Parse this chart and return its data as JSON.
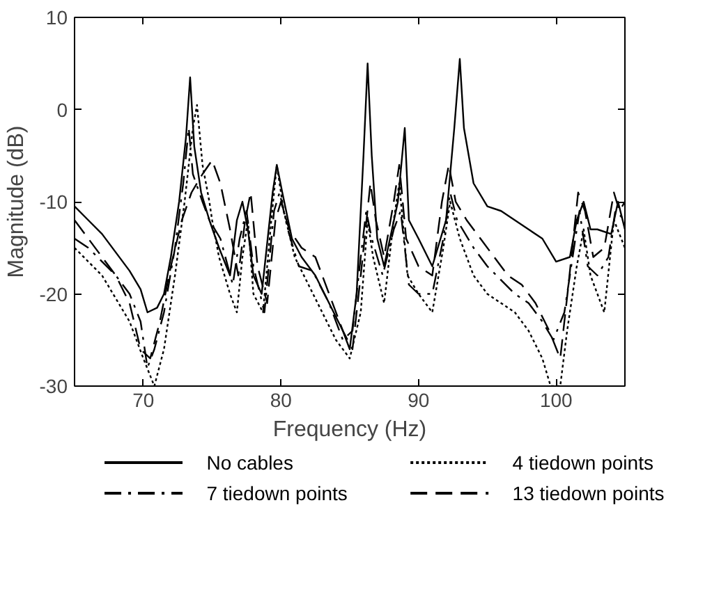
{
  "chart_data": {
    "type": "line",
    "xlabel": "Frequency (Hz)",
    "ylabel": "Magnitude (dB)",
    "xlim": [
      65,
      105
    ],
    "ylim": [
      -30,
      10
    ],
    "xticks": [
      70,
      80,
      90,
      100
    ],
    "yticks": [
      -30,
      -20,
      -10,
      0,
      10
    ],
    "grid": false,
    "legend": "bottom",
    "marker": "none",
    "series": [
      {
        "name": "No cables",
        "color": "#000000",
        "line_style": "solid",
        "x": [
          65,
          66,
          67,
          68,
          69,
          69.8,
          70.3,
          71,
          71.5,
          72,
          72.6,
          73.1,
          73.4,
          73.7,
          74.2,
          74.8,
          75.5,
          76.3,
          76.8,
          77.2,
          77.6,
          78,
          78.6,
          79.4,
          79.7,
          80.1,
          80.8,
          81.5,
          82.5,
          83.5,
          84.5,
          85,
          85.5,
          86,
          86.3,
          86.6,
          87,
          87.5,
          88.5,
          89,
          89.3,
          90,
          91,
          92,
          92.6,
          93,
          93.3,
          94,
          95,
          96,
          97,
          98,
          99,
          100,
          101,
          101.5,
          102,
          102.5,
          103,
          104,
          104.5,
          105
        ],
        "values": [
          -10.5,
          -12,
          -13.5,
          -15.5,
          -17.5,
          -19.5,
          -22,
          -21.5,
          -20,
          -16,
          -10,
          -3,
          3.5,
          -4,
          -9,
          -12,
          -15,
          -18,
          -12,
          -10,
          -13,
          -18,
          -20,
          -9,
          -6,
          -9,
          -14,
          -16,
          -18,
          -21,
          -24,
          -26,
          -20,
          -5,
          5,
          -5,
          -14,
          -17,
          -10,
          -2,
          -12,
          -14,
          -17,
          -12,
          -2,
          5.5,
          -2,
          -8,
          -10.5,
          -11,
          -12,
          -13,
          -14,
          -16.5,
          -16,
          -12,
          -10,
          -13,
          -13,
          -13.5,
          -10,
          -13
        ]
      },
      {
        "name": "4 tiedown points",
        "color": "#000000",
        "line_style": "dotted",
        "x": [
          65,
          66,
          67,
          68,
          69,
          70,
          70.8,
          71.5,
          72.3,
          73,
          73.6,
          73.9,
          74.3,
          74.8,
          75,
          75.5,
          76.3,
          76.8,
          77.2,
          77.6,
          78,
          78.7,
          79.3,
          79.7,
          80.2,
          81,
          82,
          83,
          84,
          85,
          85.8,
          86.3,
          86.7,
          87.5,
          88.2,
          88.6,
          89.2,
          90,
          91,
          91.8,
          92.3,
          93,
          94,
          95,
          96,
          97,
          98,
          99,
          99.6,
          100.3,
          100.8,
          101.5,
          102,
          102.5,
          103,
          103.5,
          104.2,
          105
        ],
        "values": [
          -15,
          -16.5,
          -18,
          -20.5,
          -23,
          -27,
          -30,
          -26,
          -18,
          -10,
          -2,
          0.5,
          -6,
          -10,
          -12,
          -16,
          -20,
          -22,
          -16,
          -12,
          -20,
          -22,
          -12,
          -6,
          -11,
          -16,
          -19,
          -22,
          -25,
          -27,
          -22,
          -12,
          -16,
          -21,
          -12,
          -8,
          -18,
          -20,
          -22,
          -15,
          -10,
          -14,
          -18,
          -20,
          -21,
          -22,
          -24,
          -27,
          -30,
          -30,
          -24,
          -17,
          -13,
          -18,
          -20,
          -22,
          -12,
          -15
        ]
      },
      {
        "name": "7 tiedown points",
        "color": "#000000",
        "line_style": "dashdot",
        "x": [
          65,
          66,
          67,
          68,
          69,
          69.8,
          70.3,
          70.8,
          71.5,
          72.3,
          72.9,
          73.3,
          73.6,
          74.3,
          74.8,
          75.6,
          76.5,
          77,
          77.5,
          78,
          78.8,
          79.5,
          79.9,
          80.5,
          81.3,
          82.3,
          83.5,
          84.5,
          85.2,
          85.8,
          86.2,
          86.6,
          87.4,
          88.2,
          88.7,
          89.3,
          90,
          91,
          91.8,
          92.3,
          92.8,
          94,
          95,
          96,
          97,
          98,
          99,
          99.8,
          100.6,
          101.2,
          101.7,
          102.3,
          103,
          103.8,
          104.3,
          105
        ],
        "values": [
          -14,
          -15,
          -16.5,
          -18,
          -20,
          -23,
          -28,
          -26,
          -22,
          -15,
          -8,
          -2,
          -7,
          -10,
          -12,
          -14,
          -19,
          -14,
          -11,
          -17,
          -22,
          -11,
          -9,
          -13,
          -17,
          -17.5,
          -21,
          -25,
          -24,
          -16,
          -11,
          -14,
          -18,
          -13,
          -11,
          -19,
          -20,
          -20,
          -14,
          -9,
          -12,
          -15,
          -17,
          -18.5,
          -20,
          -21,
          -23,
          -25,
          -22,
          -16,
          -11,
          -17,
          -18,
          -16,
          -11,
          -12
        ]
      },
      {
        "name": "13 tiedown points",
        "color": "#000000",
        "line_style": "dashed",
        "x": [
          65,
          66,
          67,
          68,
          69,
          69.8,
          70.5,
          71.2,
          72,
          72.8,
          73.5,
          74.3,
          75,
          75.6,
          76.3,
          76.9,
          77.4,
          77.8,
          78.3,
          79,
          79.6,
          80,
          80.6,
          81.5,
          82.5,
          83.5,
          84.5,
          85.2,
          85.8,
          86.5,
          86.9,
          87.5,
          88.2,
          88.6,
          89.1,
          90,
          91,
          91.7,
          92.2,
          92.7,
          93.5,
          94.5,
          95.5,
          96.5,
          97.5,
          98.5,
          99.5,
          100.3,
          100.9,
          101.6,
          102.1,
          102.7,
          103.5,
          104.2,
          104.6,
          105
        ],
        "values": [
          -12,
          -14,
          -16,
          -18,
          -21,
          -26,
          -27,
          -23,
          -17,
          -12,
          -9,
          -7,
          -5.5,
          -8,
          -13,
          -18,
          -12,
          -9,
          -17,
          -21,
          -12,
          -10,
          -13,
          -15,
          -16,
          -20,
          -24,
          -26,
          -18,
          -8,
          -12,
          -16,
          -10,
          -6,
          -14,
          -17,
          -18,
          -10,
          -6,
          -10,
          -12,
          -14,
          -16,
          -18,
          -19,
          -21,
          -24,
          -27,
          -19,
          -9,
          -11,
          -16,
          -15,
          -9,
          -11,
          -10
        ]
      }
    ]
  }
}
